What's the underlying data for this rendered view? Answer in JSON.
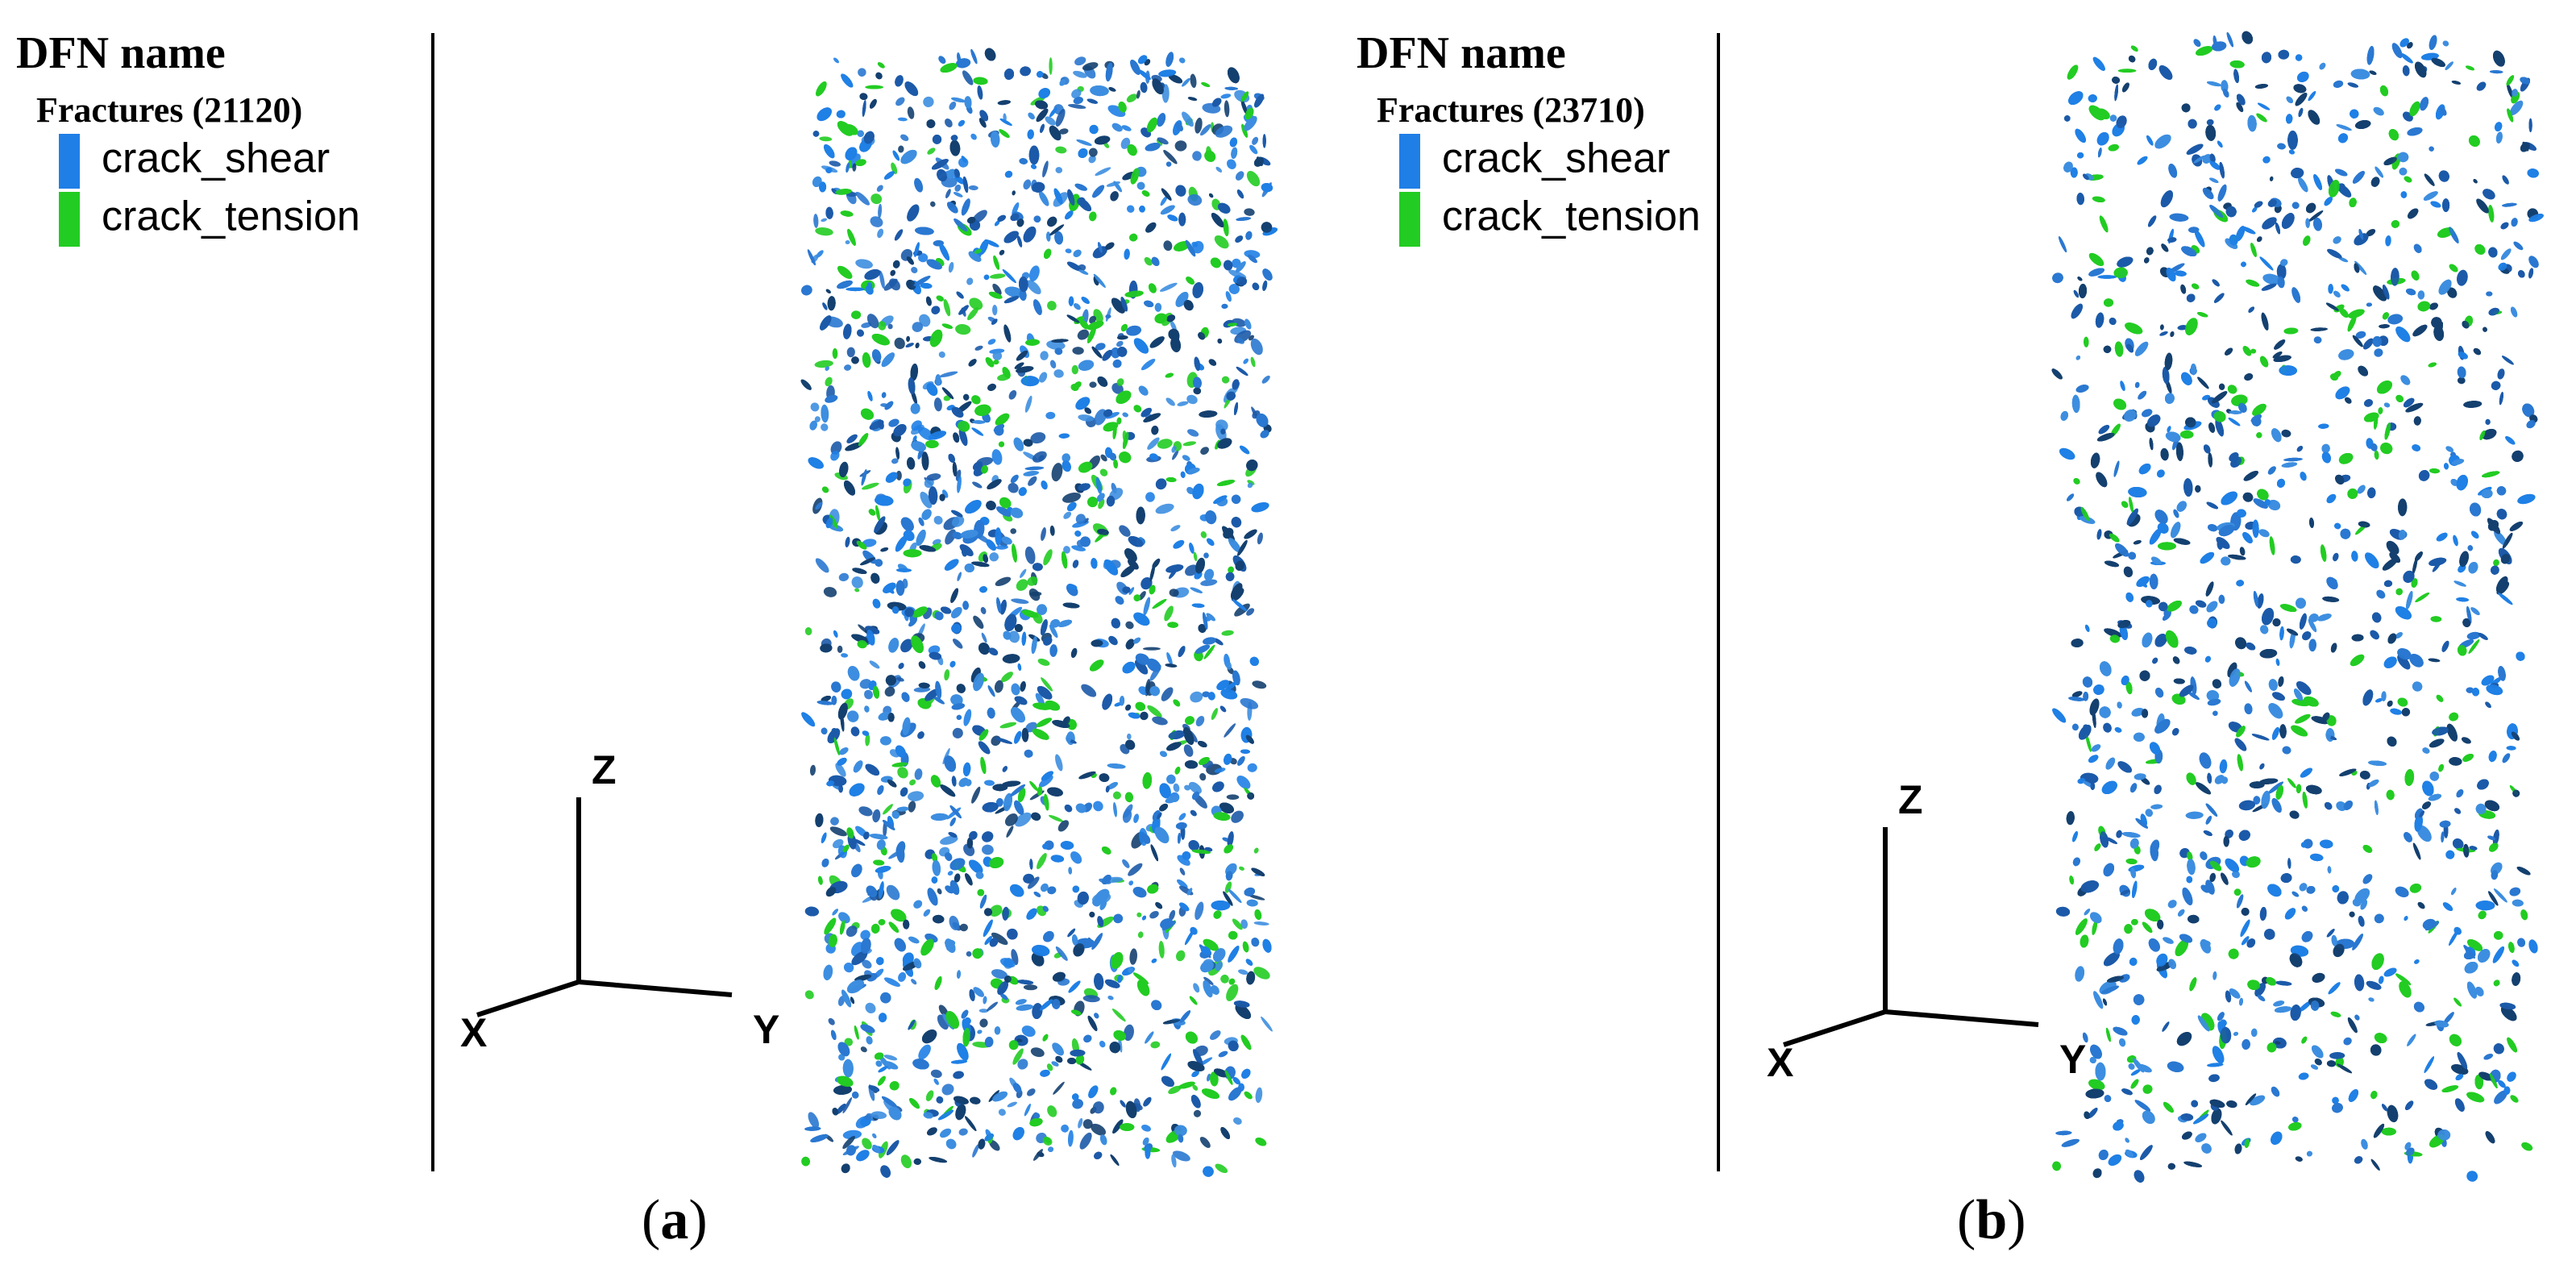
{
  "panels": [
    {
      "legend_title": "DFN name",
      "group": "Fractures (21120)",
      "items": [
        {
          "label": "crack_shear",
          "color": "#1f7fe6"
        },
        {
          "label": "crack_tension",
          "color": "#22cc22"
        }
      ],
      "axes": {
        "z": "Z",
        "x": "X",
        "y": "Y"
      },
      "caption": [
        "(",
        "a",
        ")"
      ]
    },
    {
      "legend_title": "DFN name",
      "group": "Fractures (23710)",
      "items": [
        {
          "label": "crack_shear",
          "color": "#1f7fe6"
        },
        {
          "label": "crack_tension",
          "color": "#22cc22"
        }
      ],
      "axes": {
        "z": "Z",
        "x": "X",
        "y": "Y"
      },
      "caption": [
        "(",
        "b",
        ")"
      ]
    }
  ]
}
